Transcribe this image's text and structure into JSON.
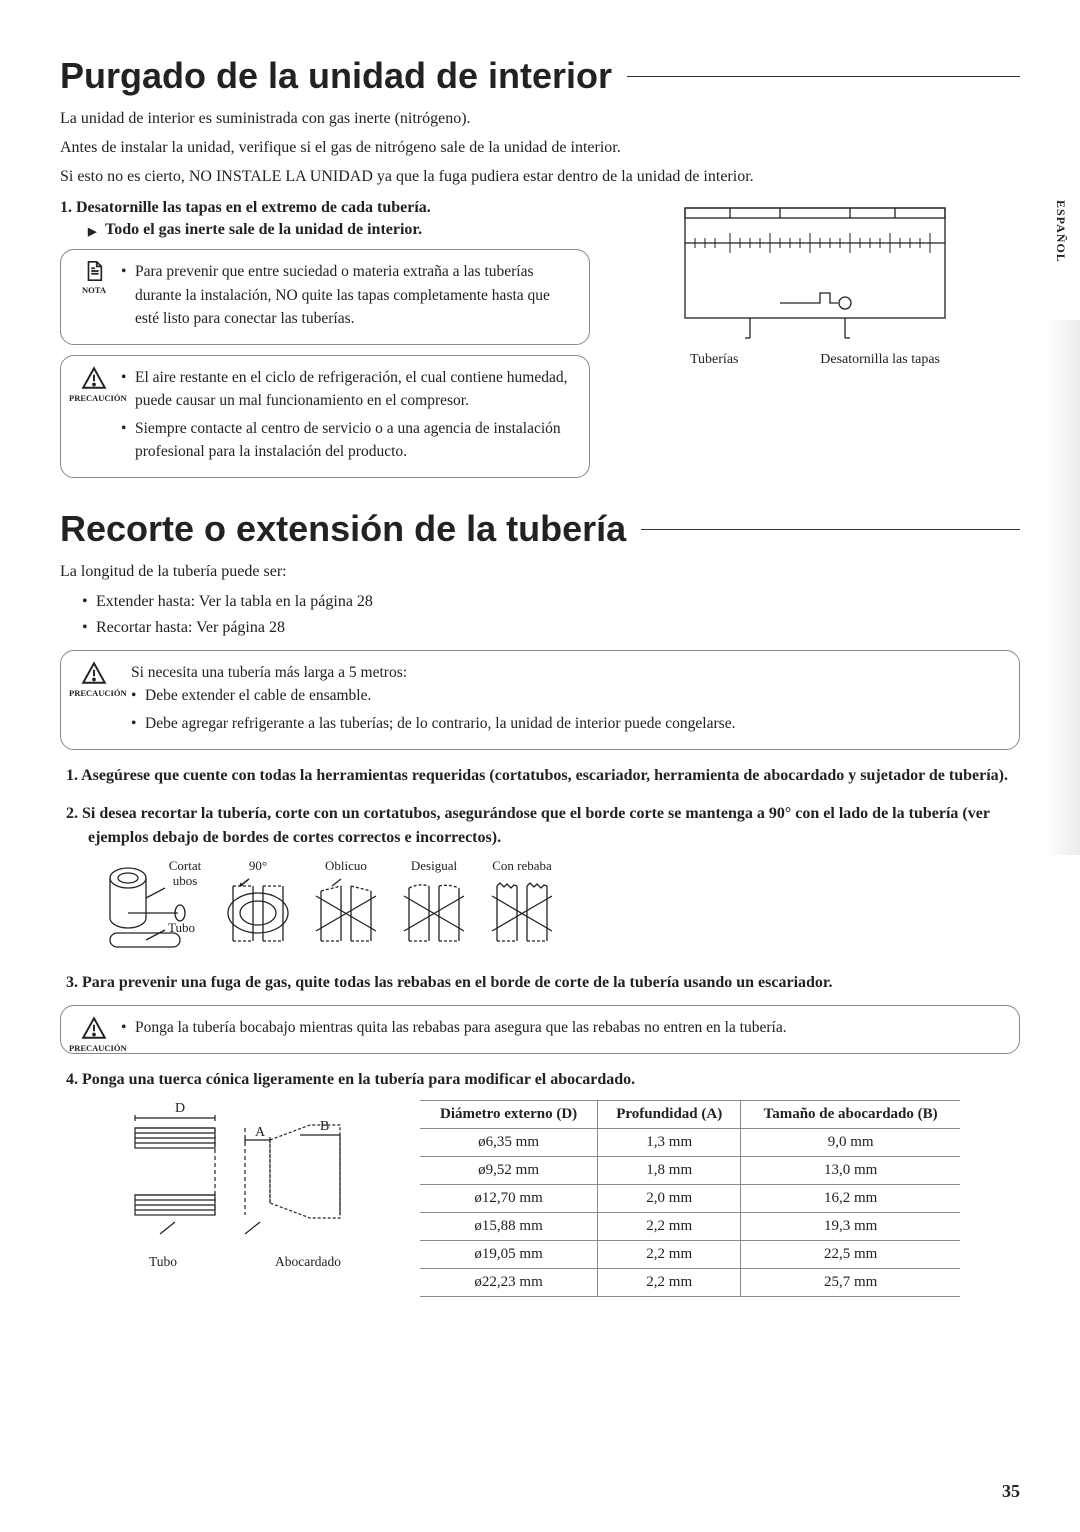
{
  "sideTab": "ESPAÑOL",
  "pageNumber": "35",
  "section1": {
    "title": "Purgado de la unidad de interior",
    "intro1": "La unidad de interior es suministrada con gas inerte (nitrógeno).",
    "intro2": "Antes de instalar la unidad, verifique si el gas de nitrógeno sale de la unidad de interior.",
    "intro3": "Si esto no es cierto, NO INSTALE LA UNIDAD ya que la fuga pudiera estar dentro de la unidad de interior.",
    "step1": "1.   Desatornille las tapas en el extremo de cada tubería.",
    "sub1": "Todo el gas inerte sale de la unidad de interior.",
    "nota": {
      "tag": "NOTA",
      "bullet": "Para prevenir que entre suciedad o materia extraña a las tuberías durante la instalación, NO quite las tapas completamente hasta que esté listo para conectar las tuberías."
    },
    "precaucion": {
      "tag": "PRECAUCIÓN",
      "b1": "El aire restante en el ciclo de refrigeración, el cual contiene humedad, puede causar un mal funcionamiento en el compresor.",
      "b2": "Siempre contacte al centro de servicio o a una agencia de instalación profesional para la instalación del producto."
    },
    "diagramLabels": {
      "left": "Tuberías",
      "right": "Desatornilla las tapas"
    }
  },
  "section2": {
    "title": "Recorte o extensión de la tubería",
    "intro": "La longitud de la tubería puede ser:",
    "li1": "Extender hasta: Ver la tabla en la página 28",
    "li2": "Recortar hasta: Ver página 28",
    "precaucion1": {
      "tag": "PRECAUCIÓN",
      "lead": "Si necesita una tubería más larga a 5 metros:",
      "b1": "Debe extender el cable de ensamble.",
      "b2": "Debe agregar refrigerante a las tuberías; de lo contrario, la unidad de interior puede congelarse."
    },
    "n1": "1.   Asegúrese que cuente con todas la herramientas requeridas (cortatubos, escariador, herramienta de abocardado y sujetador de tubería).",
    "n2": "2.   Si desea recortar la tubería, corte con un cortatubos, asegurándose que el borde corte se mantenga a 90° con el lado de la tubería (ver ejemplos debajo de bordes de cortes correctos e incorrectos).",
    "cuts": {
      "tool1": "Cortat ubos",
      "tool2": "Tubo",
      "c1": "90°",
      "c2": "Oblicuo",
      "c3": "Desigual",
      "c4": "Con rebaba"
    },
    "n3": "3.   Para prevenir una fuga de gas, quite todas las rebabas en el borde de corte de la tubería usando un escariador.",
    "precaucion2": {
      "tag": "PRECAUCIÓN",
      "b1": "Ponga la tubería bocabajo mientras quita las rebabas para asegura que las rebabas no entren en la tubería."
    },
    "n4": "4.   Ponga una tuerca cónica ligeramente en la tubería para modificar el abocardado.",
    "flareDiagram": {
      "d": "D",
      "a": "A",
      "b": "B",
      "tubo": "Tubo",
      "abocardado": "Abocardado"
    },
    "table": {
      "h1": "Diámetro externo (D)",
      "h2": "Profundidad (A)",
      "h3": "Tamaño de abocardado (B)",
      "rows": [
        [
          "ø6,35 mm",
          "1,3 mm",
          "9,0 mm"
        ],
        [
          "ø9,52 mm",
          "1,8 mm",
          "13,0 mm"
        ],
        [
          "ø12,70 mm",
          "2,0 mm",
          "16,2 mm"
        ],
        [
          "ø15,88 mm",
          "2,2 mm",
          "19,3 mm"
        ],
        [
          "ø19,05 mm",
          "2,2 mm",
          "22,5 mm"
        ],
        [
          "ø22,23 mm",
          "2,2 mm",
          "25,7 mm"
        ]
      ]
    }
  }
}
